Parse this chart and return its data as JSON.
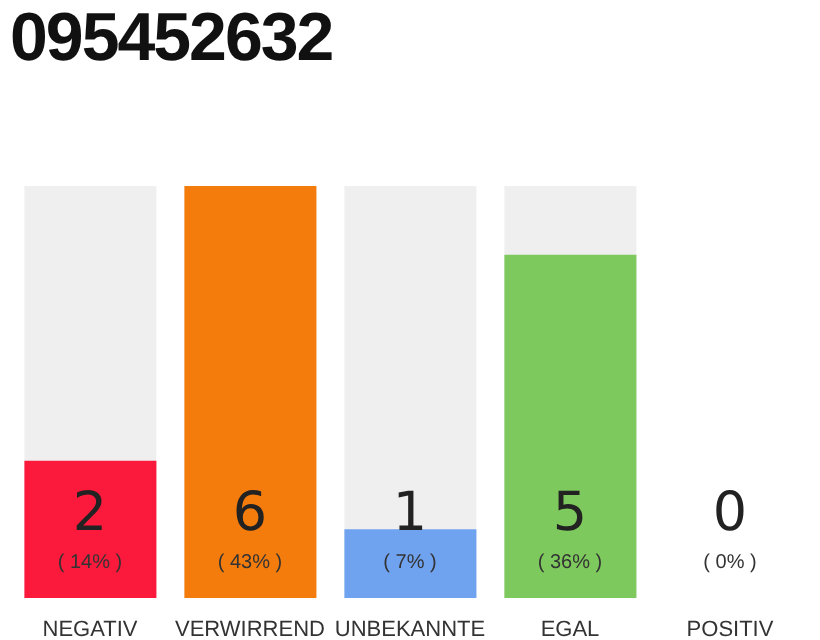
{
  "chart_data": {
    "type": "bar",
    "title": "095452632",
    "categories": [
      "NEGATIV",
      "VERWIRREND",
      "UNBEKANNTE",
      "EGAL",
      "POSITIV"
    ],
    "values": [
      2,
      6,
      1,
      5,
      0
    ],
    "colors": [
      "#fc1a3c",
      "#f47c0c",
      "#6fa3f0",
      "#7ec95d",
      "#2e9e3f"
    ],
    "data_labels": true,
    "annotations": [
      "( 14% )",
      "( 43% )",
      "( 7% )",
      "( 36% )",
      "( 0% )"
    ]
  }
}
